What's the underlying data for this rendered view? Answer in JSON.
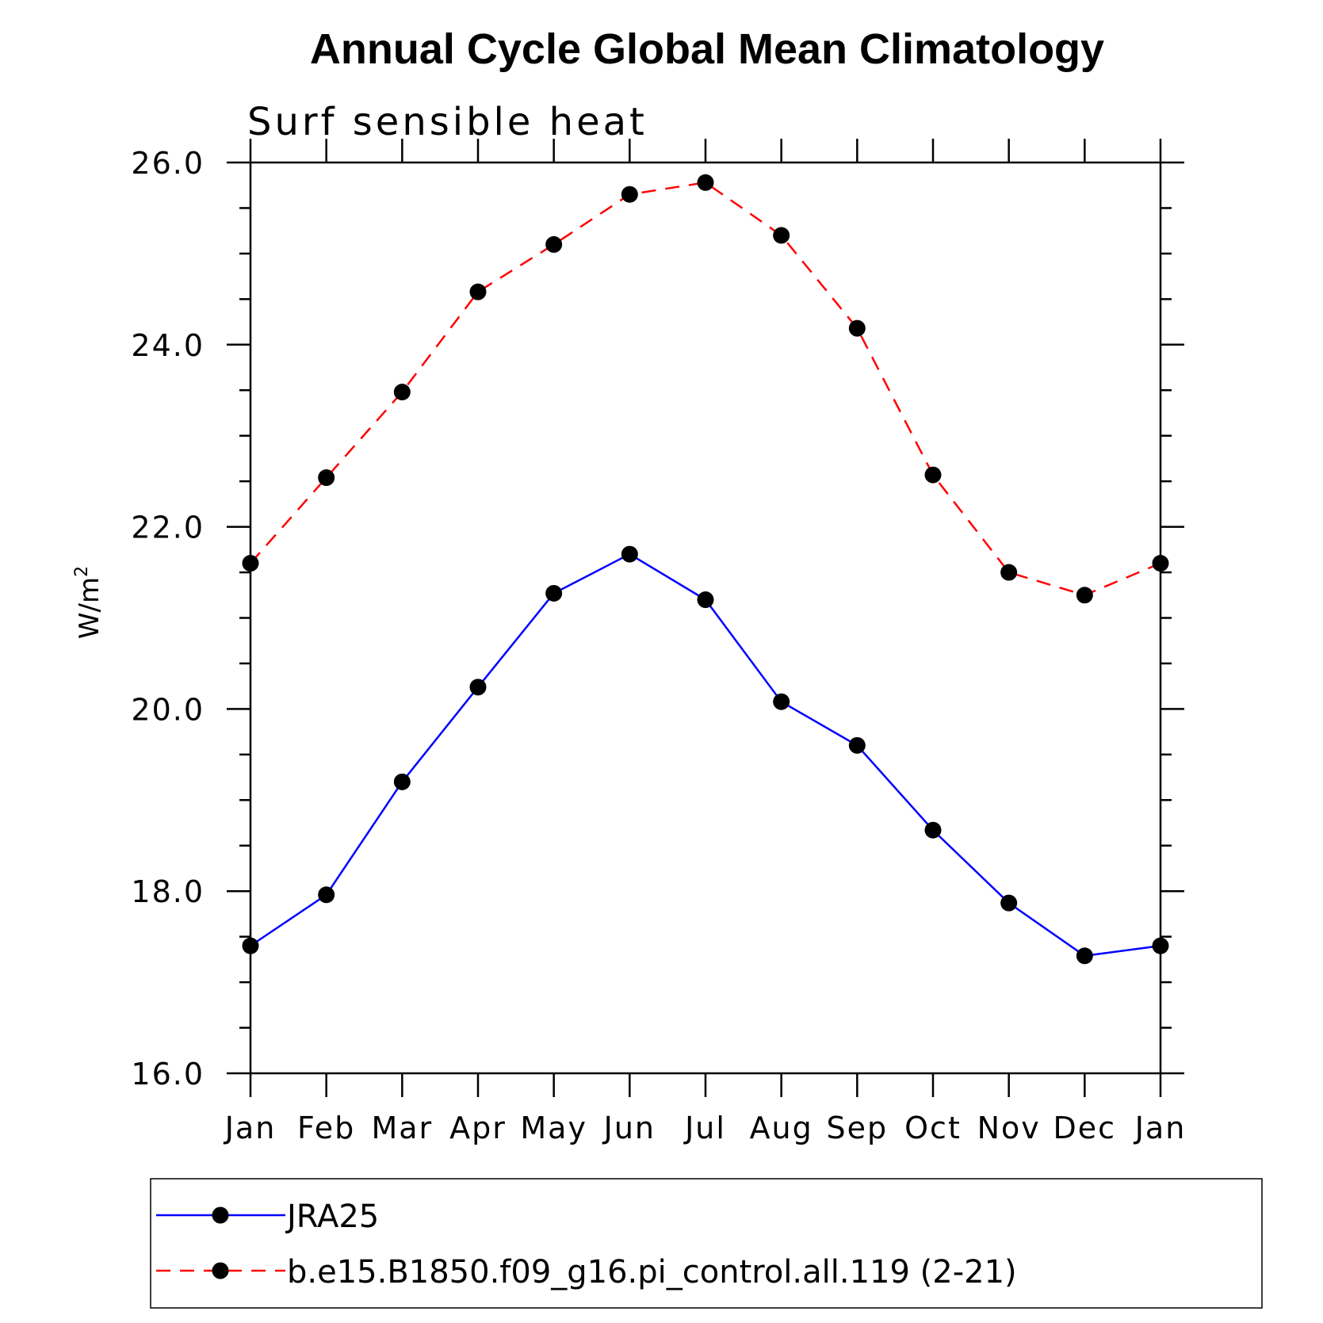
{
  "chart_data": {
    "type": "line",
    "title": "Annual Cycle Global Mean Climatology",
    "subtitle": "Surf sensible heat",
    "ylabel_base": "W/m",
    "ylabel_sup": "2",
    "xlabel": "",
    "categories": [
      "Jan",
      "Feb",
      "Mar",
      "Apr",
      "May",
      "Jun",
      "Jul",
      "Aug",
      "Sep",
      "Oct",
      "Nov",
      "Dec",
      "Jan"
    ],
    "ylim": [
      16.0,
      26.0
    ],
    "yticks": [
      "16.0",
      "18.0",
      "20.0",
      "22.0",
      "24.0",
      "26.0"
    ],
    "grid": false,
    "legend_position": "bottom",
    "series": [
      {
        "name": "JRA25",
        "color": "#0000ff",
        "dash": "solid",
        "marker": "filled-circle",
        "values": [
          17.4,
          17.96,
          19.2,
          20.24,
          21.27,
          21.7,
          21.2,
          20.08,
          19.6,
          18.67,
          17.87,
          17.29,
          17.4
        ]
      },
      {
        "name": "b.e15.B1850.f09_g16.pi_control.all.119 (2-21)",
        "color": "#ff0000",
        "dash": "dashed",
        "marker": "filled-circle",
        "values": [
          21.6,
          22.54,
          23.48,
          24.58,
          25.1,
          25.65,
          25.78,
          25.2,
          24.18,
          22.57,
          21.5,
          21.25,
          21.6
        ]
      }
    ]
  }
}
